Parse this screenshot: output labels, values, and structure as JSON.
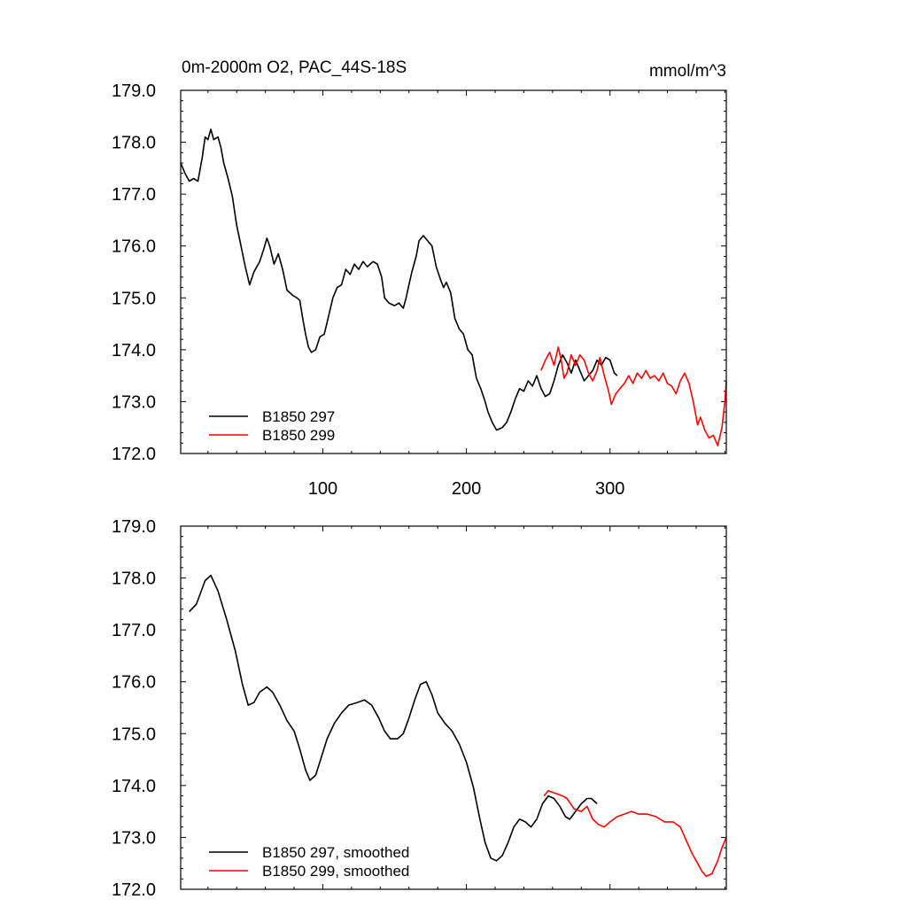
{
  "chart_data": [
    {
      "type": "line",
      "title": "0m-2000m O2, PAC_44S-18S",
      "units": "mmol/m^3",
      "xlim": [
        1,
        381
      ],
      "ylim": [
        172.0,
        179.0
      ],
      "x_ticks": [
        100,
        200,
        300
      ],
      "y_ticks": [
        "179.0",
        "178.0",
        "177.0",
        "176.0",
        "175.0",
        "174.0",
        "173.0",
        "172.0"
      ],
      "legend_position": "bottom-left",
      "series": [
        {
          "name": "B1850 297",
          "color": "#000000",
          "points": [
            [
              1,
              177.6
            ],
            [
              4,
              177.4
            ],
            [
              7,
              177.25
            ],
            [
              10,
              177.3
            ],
            [
              13,
              177.25
            ],
            [
              16,
              177.7
            ],
            [
              18,
              178.1
            ],
            [
              20,
              178.05
            ],
            [
              22,
              178.25
            ],
            [
              24,
              178.05
            ],
            [
              27,
              178.1
            ],
            [
              29,
              177.9
            ],
            [
              31,
              177.6
            ],
            [
              34,
              177.3
            ],
            [
              37,
              176.95
            ],
            [
              40,
              176.4
            ],
            [
              43,
              176.0
            ],
            [
              46,
              175.6
            ],
            [
              49,
              175.25
            ],
            [
              52,
              175.5
            ],
            [
              56,
              175.7
            ],
            [
              59,
              175.95
            ],
            [
              61,
              176.15
            ],
            [
              63,
              176.0
            ],
            [
              66,
              175.65
            ],
            [
              69,
              175.85
            ],
            [
              72,
              175.55
            ],
            [
              75,
              175.15
            ],
            [
              79,
              175.05
            ],
            [
              82,
              175.0
            ],
            [
              84,
              174.95
            ],
            [
              86,
              174.6
            ],
            [
              88,
              174.3
            ],
            [
              90,
              174.05
            ],
            [
              92,
              173.95
            ],
            [
              95,
              174.0
            ],
            [
              98,
              174.25
            ],
            [
              101,
              174.3
            ],
            [
              104,
              174.65
            ],
            [
              107,
              175.0
            ],
            [
              110,
              175.2
            ],
            [
              113,
              175.25
            ],
            [
              116,
              175.55
            ],
            [
              119,
              175.45
            ],
            [
              122,
              175.65
            ],
            [
              125,
              175.55
            ],
            [
              128,
              175.7
            ],
            [
              131,
              175.6
            ],
            [
              135,
              175.7
            ],
            [
              138,
              175.65
            ],
            [
              141,
              175.4
            ],
            [
              143,
              175.0
            ],
            [
              146,
              174.9
            ],
            [
              150,
              174.85
            ],
            [
              153,
              174.9
            ],
            [
              156,
              174.8
            ],
            [
              158,
              175.0
            ],
            [
              160,
              175.25
            ],
            [
              162,
              175.5
            ],
            [
              165,
              175.8
            ],
            [
              167,
              176.1
            ],
            [
              170,
              176.2
            ],
            [
              173,
              176.1
            ],
            [
              176,
              176.0
            ],
            [
              179,
              175.6
            ],
            [
              182,
              175.35
            ],
            [
              184,
              175.2
            ],
            [
              186,
              175.3
            ],
            [
              189,
              175.1
            ],
            [
              192,
              174.6
            ],
            [
              195,
              174.4
            ],
            [
              198,
              174.3
            ],
            [
              201,
              174.0
            ],
            [
              204,
              173.9
            ],
            [
              207,
              173.45
            ],
            [
              210,
              173.25
            ],
            [
              213,
              173.0
            ],
            [
              215,
              172.8
            ],
            [
              218,
              172.6
            ],
            [
              221,
              172.45
            ],
            [
              225,
              172.5
            ],
            [
              228,
              172.6
            ],
            [
              231,
              172.8
            ],
            [
              234,
              173.05
            ],
            [
              237,
              173.25
            ],
            [
              240,
              173.2
            ],
            [
              243,
              173.4
            ],
            [
              246,
              173.3
            ],
            [
              249,
              173.5
            ],
            [
              252,
              173.25
            ],
            [
              255,
              173.1
            ],
            [
              258,
              173.15
            ],
            [
              261,
              173.4
            ],
            [
              264,
              173.7
            ],
            [
              267,
              173.9
            ],
            [
              270,
              173.75
            ],
            [
              273,
              173.55
            ],
            [
              276,
              173.8
            ],
            [
              279,
              173.6
            ],
            [
              282,
              173.4
            ],
            [
              285,
              173.5
            ],
            [
              288,
              173.6
            ],
            [
              291,
              173.8
            ],
            [
              294,
              173.7
            ],
            [
              297,
              173.85
            ],
            [
              300,
              173.8
            ],
            [
              303,
              173.55
            ],
            [
              305,
              173.5
            ]
          ]
        },
        {
          "name": "B1850 299",
          "color": "#ff0000",
          "points": [
            [
              252,
              173.6
            ],
            [
              255,
              173.8
            ],
            [
              258,
              173.95
            ],
            [
              261,
              173.7
            ],
            [
              264,
              174.05
            ],
            [
              266,
              173.8
            ],
            [
              268,
              173.45
            ],
            [
              270,
              173.55
            ],
            [
              273,
              173.9
            ],
            [
              276,
              173.7
            ],
            [
              279,
              173.9
            ],
            [
              282,
              173.8
            ],
            [
              285,
              173.55
            ],
            [
              288,
              173.4
            ],
            [
              291,
              173.6
            ],
            [
              293,
              173.85
            ],
            [
              296,
              173.5
            ],
            [
              299,
              173.2
            ],
            [
              301,
              172.95
            ],
            [
              304,
              173.15
            ],
            [
              307,
              173.25
            ],
            [
              310,
              173.35
            ],
            [
              313,
              173.5
            ],
            [
              316,
              173.35
            ],
            [
              319,
              173.55
            ],
            [
              322,
              173.45
            ],
            [
              325,
              173.6
            ],
            [
              328,
              173.45
            ],
            [
              331,
              173.5
            ],
            [
              334,
              173.4
            ],
            [
              337,
              173.55
            ],
            [
              340,
              173.35
            ],
            [
              343,
              173.3
            ],
            [
              346,
              173.15
            ],
            [
              349,
              173.4
            ],
            [
              352,
              173.55
            ],
            [
              355,
              173.35
            ],
            [
              358,
              173.0
            ],
            [
              361,
              172.55
            ],
            [
              363,
              172.7
            ],
            [
              366,
              172.45
            ],
            [
              369,
              172.3
            ],
            [
              372,
              172.35
            ],
            [
              375,
              172.15
            ],
            [
              378,
              172.5
            ],
            [
              380,
              173.0
            ],
            [
              381,
              173.4
            ]
          ]
        }
      ]
    },
    {
      "type": "line",
      "title": "",
      "xlim": [
        1,
        381
      ],
      "ylim": [
        172.0,
        179.0
      ],
      "y_ticks": [
        "179.0",
        "178.0",
        "177.0",
        "176.0",
        "175.0",
        "174.0",
        "173.0",
        "172.0"
      ],
      "legend_position": "bottom-left",
      "series": [
        {
          "name": "B1850 297, smoothed",
          "color": "#000000",
          "points": [
            [
              7,
              177.35
            ],
            [
              12,
              177.5
            ],
            [
              18,
              177.95
            ],
            [
              22,
              178.05
            ],
            [
              27,
              177.75
            ],
            [
              33,
              177.2
            ],
            [
              39,
              176.6
            ],
            [
              44,
              175.95
            ],
            [
              48,
              175.55
            ],
            [
              52,
              175.6
            ],
            [
              56,
              175.8
            ],
            [
              61,
              175.9
            ],
            [
              65,
              175.8
            ],
            [
              70,
              175.55
            ],
            [
              75,
              175.25
            ],
            [
              80,
              175.05
            ],
            [
              84,
              174.7
            ],
            [
              88,
              174.3
            ],
            [
              91,
              174.1
            ],
            [
              95,
              174.2
            ],
            [
              99,
              174.55
            ],
            [
              103,
              174.9
            ],
            [
              108,
              175.2
            ],
            [
              113,
              175.4
            ],
            [
              118,
              175.55
            ],
            [
              124,
              175.6
            ],
            [
              129,
              175.65
            ],
            [
              134,
              175.55
            ],
            [
              139,
              175.3
            ],
            [
              143,
              175.05
            ],
            [
              147,
              174.9
            ],
            [
              152,
              174.9
            ],
            [
              156,
              175.0
            ],
            [
              160,
              175.3
            ],
            [
              164,
              175.65
            ],
            [
              168,
              175.95
            ],
            [
              172,
              176.0
            ],
            [
              176,
              175.75
            ],
            [
              180,
              175.4
            ],
            [
              185,
              175.2
            ],
            [
              190,
              175.05
            ],
            [
              195,
              174.8
            ],
            [
              200,
              174.45
            ],
            [
              205,
              173.95
            ],
            [
              209,
              173.4
            ],
            [
              213,
              172.9
            ],
            [
              217,
              172.6
            ],
            [
              221,
              172.55
            ],
            [
              225,
              172.65
            ],
            [
              229,
              172.9
            ],
            [
              233,
              173.2
            ],
            [
              237,
              173.35
            ],
            [
              241,
              173.3
            ],
            [
              245,
              173.2
            ],
            [
              249,
              173.35
            ],
            [
              253,
              173.65
            ],
            [
              257,
              173.8
            ],
            [
              261,
              173.75
            ],
            [
              265,
              173.6
            ],
            [
              269,
              173.4
            ],
            [
              272,
              173.35
            ],
            [
              276,
              173.5
            ],
            [
              280,
              173.65
            ],
            [
              284,
              173.75
            ],
            [
              287,
              173.75
            ],
            [
              291,
              173.65
            ]
          ]
        },
        {
          "name": "B1850 299, smoothed",
          "color": "#ff0000",
          "points": [
            [
              254,
              173.8
            ],
            [
              257,
              173.9
            ],
            [
              262,
              173.85
            ],
            [
              267,
              173.8
            ],
            [
              270,
              173.75
            ],
            [
              275,
              173.55
            ],
            [
              280,
              173.5
            ],
            [
              284,
              173.6
            ],
            [
              288,
              173.35
            ],
            [
              292,
              173.25
            ],
            [
              296,
              173.2
            ],
            [
              300,
              173.3
            ],
            [
              305,
              173.4
            ],
            [
              310,
              173.45
            ],
            [
              315,
              173.5
            ],
            [
              320,
              173.45
            ],
            [
              326,
              173.45
            ],
            [
              332,
              173.4
            ],
            [
              338,
              173.3
            ],
            [
              344,
              173.3
            ],
            [
              349,
              173.2
            ],
            [
              353,
              172.95
            ],
            [
              357,
              172.7
            ],
            [
              361,
              172.5
            ],
            [
              364,
              172.35
            ],
            [
              367,
              172.25
            ],
            [
              371,
              172.3
            ],
            [
              375,
              172.55
            ],
            [
              378,
              172.8
            ],
            [
              381,
              173.0
            ]
          ]
        }
      ]
    }
  ]
}
